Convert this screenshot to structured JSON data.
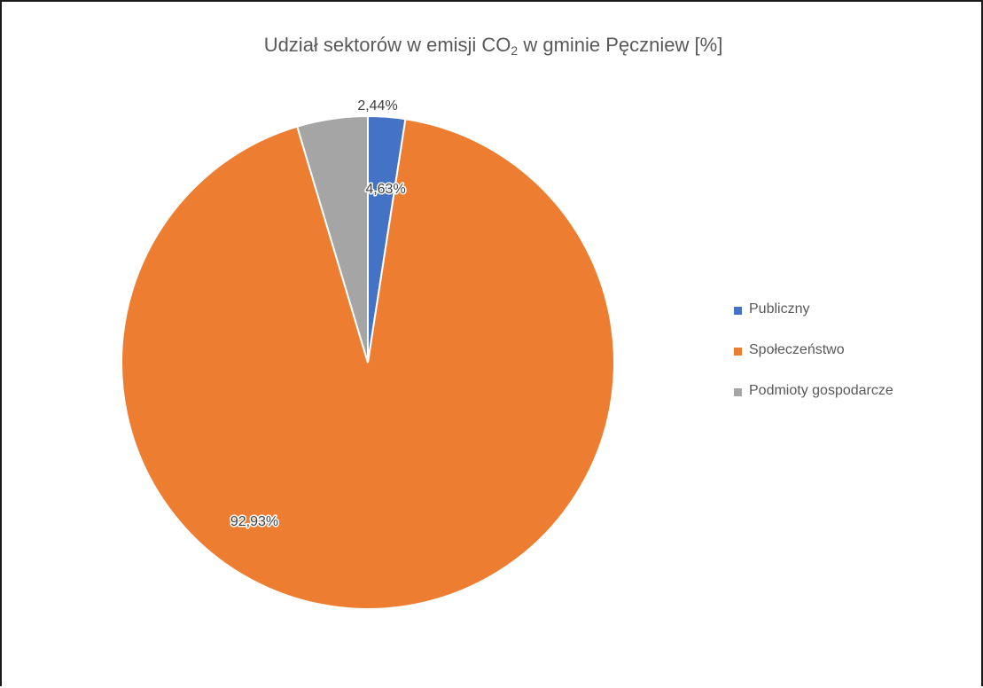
{
  "chart_data": {
    "type": "pie",
    "title": "Udział sektorów w emisji CO",
    "title_subscript": "2",
    "title_suffix": " w gminie Pęczniew [%]",
    "categories": [
      "Publiczny",
      "Społeczeństwo",
      "Podmioty gospodarcze"
    ],
    "values": [
      2.44,
      92.93,
      4.63
    ],
    "data_labels": [
      "2,44%",
      "92,93%",
      "4,63%"
    ],
    "colors": [
      "#4472C4",
      "#ED7D31",
      "#A5A5A5"
    ],
    "legend_position": "right",
    "grid": false
  }
}
